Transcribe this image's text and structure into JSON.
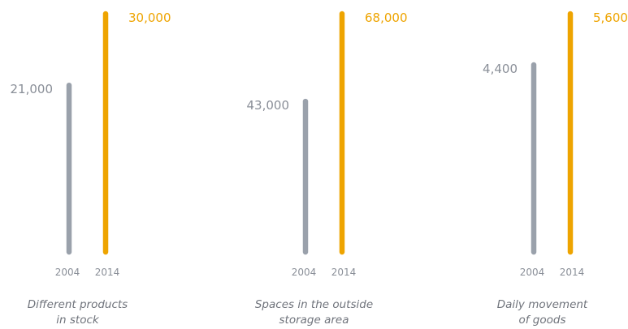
{
  "colors": {
    "year_2004": "#9aa1ab",
    "year_2014": "#eea400",
    "label_2004": "#8a8f98",
    "label_2014": "#eea400",
    "caption": "#6f737b"
  },
  "chart_data": [
    {
      "type": "bar",
      "categories": [
        "2004",
        "2014"
      ],
      "values": [
        21000,
        30000
      ],
      "labels": [
        "21,000",
        "30,000"
      ],
      "caption": [
        "Different products",
        "in stock"
      ]
    },
    {
      "type": "bar",
      "categories": [
        "2004",
        "2014"
      ],
      "values": [
        43000,
        68000
      ],
      "labels": [
        "43,000",
        "68,000"
      ],
      "caption": [
        "Spaces in the outside",
        "storage area"
      ]
    },
    {
      "type": "bar",
      "categories": [
        "2004",
        "2014"
      ],
      "values": [
        4400,
        5600
      ],
      "labels": [
        "4,400",
        "5,600"
      ],
      "caption": [
        "Daily movement",
        "of goods"
      ]
    }
  ]
}
